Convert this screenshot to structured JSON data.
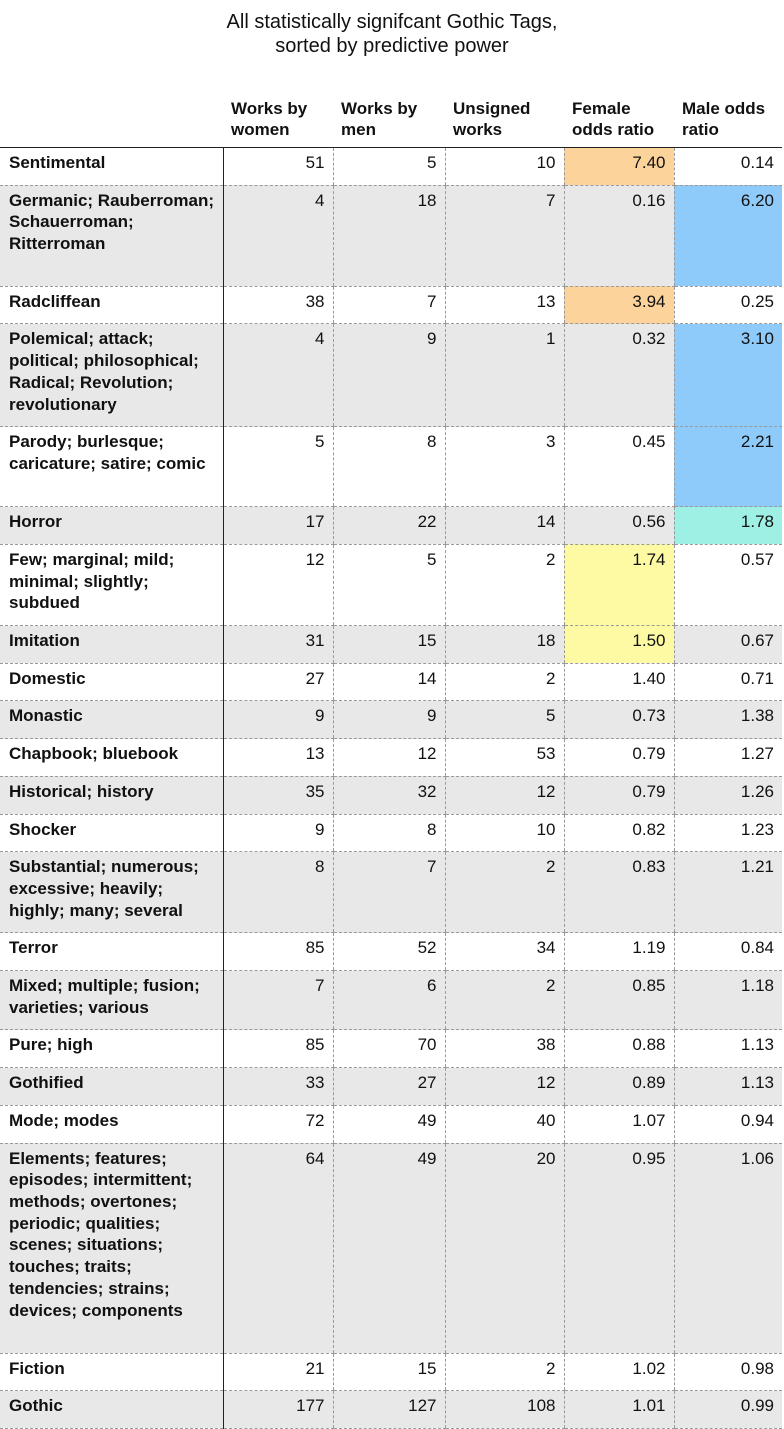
{
  "title_lines": [
    "All statistically signifcant Gothic Tags,",
    "sorted by predictive power"
  ],
  "headers": {
    "works_by_women": "Works by women",
    "works_by_men": "Works by men",
    "unsigned_works": "Unsigned works",
    "female_odds_ratio": "Female odds ratio",
    "male_odds_ratio": "Male odds ratio"
  },
  "highlight_colors": {
    "orange": "#fbd39b",
    "blue": "#8fcbfa",
    "teal": "#9ef0e4",
    "yellow": "#fdfaa3",
    "stripe": "#e8e8e8"
  },
  "rows": [
    {
      "tag": "Sentimental",
      "women": "51",
      "men": "5",
      "unsigned": "10",
      "female_or": "7.40",
      "male_or": "0.14",
      "female_hl": "orange",
      "male_hl": ""
    },
    {
      "tag": "Germanic; Rauberroman; Schauerroman; Ritterroman",
      "women": "4",
      "men": "18",
      "unsigned": "7",
      "female_or": "0.16",
      "male_or": "6.20",
      "female_hl": "",
      "male_hl": "blue"
    },
    {
      "tag": "Radcliffean",
      "women": "38",
      "men": "7",
      "unsigned": "13",
      "female_or": "3.94",
      "male_or": "0.25",
      "female_hl": "orange",
      "male_hl": ""
    },
    {
      "tag": "Polemical; attack; political; philosophical; Radical; Revolution; revolutionary",
      "women": "4",
      "men": "9",
      "unsigned": "1",
      "female_or": "0.32",
      "male_or": "3.10",
      "female_hl": "",
      "male_hl": "blue"
    },
    {
      "tag": "Parody; burlesque; caricature; satire; comic",
      "women": "5",
      "men": "8",
      "unsigned": "3",
      "female_or": "0.45",
      "male_or": "2.21",
      "female_hl": "",
      "male_hl": "blue"
    },
    {
      "tag": "Horror",
      "women": "17",
      "men": "22",
      "unsigned": "14",
      "female_or": "0.56",
      "male_or": "1.78",
      "female_hl": "",
      "male_hl": "teal"
    },
    {
      "tag": "Few; marginal; mild; minimal; slightly; subdued",
      "women": "12",
      "men": "5",
      "unsigned": "2",
      "female_or": "1.74",
      "male_or": "0.57",
      "female_hl": "yellow",
      "male_hl": ""
    },
    {
      "tag": "Imitation",
      "women": "31",
      "men": "15",
      "unsigned": "18",
      "female_or": "1.50",
      "male_or": "0.67",
      "female_hl": "yellow",
      "male_hl": ""
    },
    {
      "tag": "Domestic",
      "women": "27",
      "men": "14",
      "unsigned": "2",
      "female_or": "1.40",
      "male_or": "0.71",
      "female_hl": "",
      "male_hl": ""
    },
    {
      "tag": "Monastic",
      "women": "9",
      "men": "9",
      "unsigned": "5",
      "female_or": "0.73",
      "male_or": "1.38",
      "female_hl": "",
      "male_hl": ""
    },
    {
      "tag": "Chapbook; bluebook",
      "women": "13",
      "men": "12",
      "unsigned": "53",
      "female_or": "0.79",
      "male_or": "1.27",
      "female_hl": "",
      "male_hl": ""
    },
    {
      "tag": "Historical; history",
      "women": "35",
      "men": "32",
      "unsigned": "12",
      "female_or": "0.79",
      "male_or": "1.26",
      "female_hl": "",
      "male_hl": ""
    },
    {
      "tag": "Shocker",
      "women": "9",
      "men": "8",
      "unsigned": "10",
      "female_or": "0.82",
      "male_or": "1.23",
      "female_hl": "",
      "male_hl": ""
    },
    {
      "tag": "Substantial; numerous; excessive; heavily; highly; many; several",
      "women": "8",
      "men": "7",
      "unsigned": "2",
      "female_or": "0.83",
      "male_or": "1.21",
      "female_hl": "",
      "male_hl": ""
    },
    {
      "tag": "Terror",
      "women": "85",
      "men": "52",
      "unsigned": "34",
      "female_or": "1.19",
      "male_or": "0.84",
      "female_hl": "",
      "male_hl": ""
    },
    {
      "tag": "Mixed; multiple; fusion; varieties; various",
      "women": "7",
      "men": "6",
      "unsigned": "2",
      "female_or": "0.85",
      "male_or": "1.18",
      "female_hl": "",
      "male_hl": ""
    },
    {
      "tag": "Pure; high",
      "women": "85",
      "men": "70",
      "unsigned": "38",
      "female_or": "0.88",
      "male_or": "1.13",
      "female_hl": "",
      "male_hl": ""
    },
    {
      "tag": "Gothified",
      "women": "33",
      "men": "27",
      "unsigned": "12",
      "female_or": "0.89",
      "male_or": "1.13",
      "female_hl": "",
      "male_hl": ""
    },
    {
      "tag": "Mode; modes",
      "women": "72",
      "men": "49",
      "unsigned": "40",
      "female_or": "1.07",
      "male_or": "0.94",
      "female_hl": "",
      "male_hl": ""
    },
    {
      "tag": "Elements; features; episodes; intermittent; methods; overtones; periodic; qualities; scenes; situations; touches; traits; tendencies; strains; devices; components",
      "women": "64",
      "men": "49",
      "unsigned": "20",
      "female_or": "0.95",
      "male_or": "1.06",
      "female_hl": "",
      "male_hl": ""
    },
    {
      "tag": "Fiction",
      "women": "21",
      "men": "15",
      "unsigned": "2",
      "female_or": "1.02",
      "male_or": "0.98",
      "female_hl": "",
      "male_hl": ""
    },
    {
      "tag": "Gothic",
      "women": "177",
      "men": "127",
      "unsigned": "108",
      "female_or": "1.01",
      "male_or": "0.99",
      "female_hl": "",
      "male_hl": ""
    }
  ]
}
